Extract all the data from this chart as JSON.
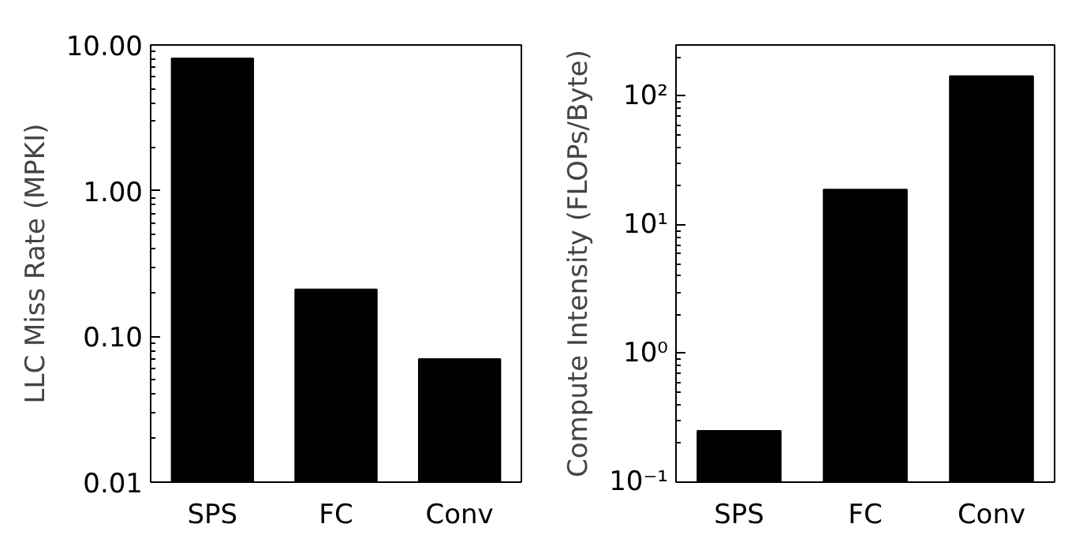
{
  "chart_data": [
    {
      "type": "bar",
      "categories": [
        "SPS",
        "FC",
        "Conv"
      ],
      "values": [
        8.1,
        0.21,
        0.07
      ],
      "color": "#000000",
      "ylabel": "LLC Miss Rate (MPKI)",
      "log": "y",
      "ylim": [
        0.01,
        10
      ],
      "yticks": [
        {
          "value": 0.01,
          "label": "0.01"
        },
        {
          "value": 0.1,
          "label": "0.10"
        },
        {
          "value": 1,
          "label": "1.00"
        },
        {
          "value": 10,
          "label": "10.00"
        }
      ]
    },
    {
      "type": "bar",
      "categories": [
        "SPS",
        "FC",
        "Conv"
      ],
      "values": [
        0.25,
        18.8,
        143
      ],
      "color": "#000000",
      "ylabel": "Compute Intensity (FLOPs/Byte)",
      "log": "y",
      "ylim": [
        0.1,
        250
      ],
      "yticks": [
        {
          "value": 0.1,
          "label": "10⁻¹"
        },
        {
          "value": 1,
          "label": "10⁰"
        },
        {
          "value": 10,
          "label": "10¹"
        },
        {
          "value": 100,
          "label": "10²"
        }
      ]
    }
  ]
}
